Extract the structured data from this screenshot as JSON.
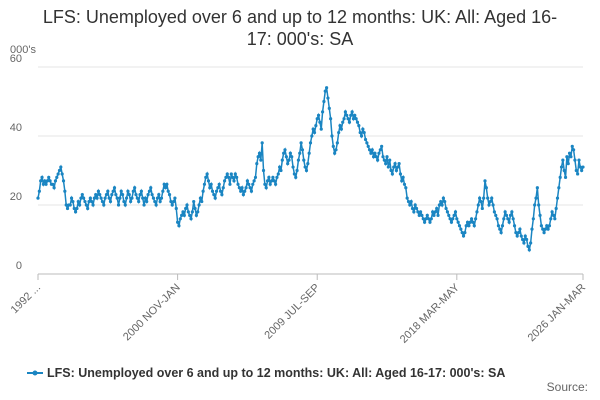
{
  "chart_data": {
    "type": "line",
    "title": "LFS: Unemployed over 6 and up to 12 months: UK: All: Aged 16-17: 000's: SA",
    "y_label": "000's",
    "source": "Source:",
    "ylim": [
      0,
      60
    ],
    "yticks": [
      0,
      20,
      40,
      60
    ],
    "grid": true,
    "categories": [
      "1992 ...",
      null,
      null,
      null,
      null,
      null,
      null,
      null,
      null,
      null,
      null,
      null,
      null,
      null,
      null,
      null,
      null,
      null,
      null,
      null,
      null,
      null,
      null,
      null,
      null,
      null,
      null,
      null,
      null,
      null,
      null,
      null,
      null,
      null,
      null,
      null,
      null,
      null,
      null,
      null,
      null,
      null,
      null,
      null,
      null,
      null,
      null,
      null,
      null,
      null,
      null,
      null,
      null,
      null,
      null,
      null,
      null,
      null,
      null,
      null,
      null,
      null,
      null,
      null,
      null,
      null,
      null,
      null,
      null,
      null,
      null,
      null,
      null,
      null,
      null,
      null,
      null,
      null,
      null,
      null,
      null,
      null,
      null,
      null,
      null,
      null,
      null,
      null,
      null,
      null,
      null,
      null,
      null,
      null,
      null,
      null,
      null,
      null,
      null,
      null,
      null,
      null,
      null,
      null,
      "2000 NOV-JAN",
      null,
      null,
      null,
      null,
      null,
      null,
      null,
      null,
      null,
      null,
      null,
      null,
      null,
      null,
      null,
      null,
      null,
      null,
      null,
      null,
      null,
      null,
      null,
      null,
      null,
      null,
      null,
      null,
      null,
      null,
      null,
      null,
      null,
      null,
      null,
      null,
      null,
      null,
      null,
      null,
      null,
      null,
      null,
      null,
      null,
      null,
      null,
      null,
      null,
      null,
      null,
      null,
      null,
      null,
      null,
      null,
      null,
      null,
      null,
      null,
      null,
      null,
      null,
      null,
      null,
      null,
      null,
      null,
      null,
      null,
      null,
      null,
      null,
      null,
      null,
      null,
      null,
      null,
      null,
      null,
      null,
      null,
      null,
      null,
      null,
      null,
      null,
      null,
      null,
      null,
      null,
      null,
      null,
      null,
      null,
      null,
      null,
      null,
      null,
      null,
      null,
      null,
      null,
      "2009 JUL-SEP",
      null,
      null,
      null,
      null,
      null,
      null,
      null,
      null,
      null,
      null,
      null,
      null,
      null,
      null,
      null,
      null,
      null,
      null,
      null,
      null,
      null,
      null,
      null,
      null,
      null,
      null,
      null,
      null,
      null,
      null,
      null,
      null,
      null,
      null,
      null,
      null,
      null,
      null,
      null,
      null,
      null,
      null,
      null,
      null,
      null,
      null,
      null,
      null,
      null,
      null,
      null,
      null,
      null,
      null,
      null,
      null,
      null,
      null,
      null,
      null,
      null,
      null,
      null,
      null,
      null,
      null,
      null,
      null,
      null,
      null,
      null,
      null,
      null,
      null,
      null,
      null,
      null,
      null,
      null,
      null,
      null,
      null,
      null,
      null,
      null,
      null,
      null,
      null,
      null,
      null,
      null,
      null,
      null,
      null,
      null,
      null,
      null,
      null,
      null,
      null,
      null,
      null,
      null,
      "2018 MAR-MAY",
      null,
      null,
      null,
      null,
      null,
      null,
      null,
      null,
      null,
      null,
      null,
      null,
      null,
      null,
      null,
      null,
      null,
      null,
      null,
      null,
      null,
      null,
      null,
      null,
      null,
      null,
      null,
      null,
      null,
      null,
      null,
      null,
      null,
      null,
      null,
      null,
      null,
      null,
      null,
      null,
      null,
      null,
      null,
      null,
      null,
      null,
      null,
      null,
      null,
      null,
      null,
      null,
      null,
      null,
      null,
      null,
      null,
      null,
      null,
      null,
      null,
      null,
      null,
      null,
      null,
      null,
      null,
      null,
      null,
      null,
      null,
      null,
      null,
      null,
      null,
      null,
      null,
      null,
      null,
      null,
      null,
      null,
      null,
      null,
      null,
      null,
      null,
      null,
      null,
      null,
      null,
      null,
      null,
      "2026 JAN-MAR"
    ],
    "series": [
      {
        "name": "LFS: Unemployed over 6 and up to 12 months: UK: All: Aged 16-17: 000's: SA",
        "color": "#1a85c2",
        "values": [
          22,
          24,
          27,
          28,
          26,
          27,
          26,
          27,
          28,
          27,
          26,
          26,
          25,
          27,
          28,
          29,
          30,
          31,
          29,
          27,
          24,
          20,
          19,
          20,
          20,
          22,
          21,
          19,
          18,
          19,
          21,
          20,
          22,
          23,
          22,
          21,
          20,
          19,
          21,
          22,
          21,
          20,
          22,
          23,
          22,
          24,
          23,
          22,
          21,
          20,
          22,
          23,
          24,
          22,
          21,
          23,
          24,
          25,
          23,
          22,
          20,
          22,
          24,
          23,
          21,
          20,
          22,
          24,
          23,
          21,
          22,
          24,
          25,
          23,
          22,
          21,
          23,
          24,
          22,
          20,
          22,
          21,
          23,
          24,
          25,
          23,
          22,
          21,
          20,
          22,
          23,
          21,
          22,
          24,
          26,
          25,
          26,
          24,
          23,
          21,
          20,
          21,
          22,
          19,
          15,
          14,
          16,
          17,
          18,
          17,
          19,
          20,
          18,
          17,
          16,
          18,
          21,
          19,
          17,
          18,
          20,
          22,
          21,
          24,
          26,
          28,
          29,
          27,
          25,
          26,
          24,
          23,
          22,
          24,
          25,
          26,
          24,
          23,
          25,
          27,
          28,
          29,
          28,
          26,
          29,
          28,
          27,
          29,
          28,
          26,
          25,
          24,
          25,
          23,
          24,
          25,
          27,
          26,
          25,
          24,
          26,
          27,
          28,
          32,
          34,
          35,
          33,
          38,
          30,
          26,
          25,
          27,
          28,
          26,
          27,
          28,
          27,
          26,
          28,
          29,
          31,
          30,
          33,
          35,
          36,
          34,
          32,
          33,
          35,
          34,
          31,
          29,
          28,
          30,
          33,
          35,
          38,
          36,
          33,
          31,
          30,
          32,
          35,
          38,
          40,
          42,
          41,
          43,
          45,
          46,
          44,
          42,
          47,
          50,
          53,
          54,
          51,
          48,
          45,
          40,
          37,
          35,
          36,
          38,
          41,
          43,
          42,
          44,
          45,
          47,
          46,
          45,
          44,
          46,
          47,
          45,
          46,
          45,
          44,
          43,
          41,
          40,
          42,
          41,
          39,
          38,
          37,
          36,
          35,
          36,
          34,
          35,
          34,
          33,
          35,
          36,
          37,
          34,
          33,
          32,
          34,
          31,
          33,
          30,
          29,
          31,
          32,
          30,
          31,
          32,
          29,
          27,
          28,
          26,
          25,
          22,
          21,
          20,
          21,
          19,
          18,
          20,
          19,
          18,
          17,
          18,
          17,
          16,
          15,
          16,
          17,
          16,
          15,
          16,
          18,
          17,
          18,
          19,
          17,
          20,
          21,
          20,
          22,
          21,
          19,
          18,
          17,
          16,
          15,
          16,
          17,
          18,
          16,
          15,
          14,
          13,
          12,
          11,
          12,
          14,
          15,
          14,
          15,
          16,
          15,
          14,
          16,
          18,
          20,
          22,
          21,
          19,
          22,
          27,
          25,
          22,
          20,
          21,
          22,
          20,
          18,
          17,
          16,
          14,
          13,
          12,
          14,
          16,
          18,
          17,
          16,
          15,
          17,
          18,
          16,
          14,
          12,
          11,
          12,
          13,
          11,
          10,
          9,
          11,
          10,
          8,
          7,
          9,
          13,
          16,
          20,
          22,
          25,
          20,
          17,
          14,
          13,
          12,
          13,
          14,
          13,
          14,
          16,
          18,
          17,
          16,
          19,
          22,
          25,
          28,
          31,
          33,
          30,
          28,
          34,
          32,
          35,
          34,
          37,
          36,
          33,
          30,
          29,
          33,
          31,
          30,
          31
        ]
      }
    ]
  }
}
